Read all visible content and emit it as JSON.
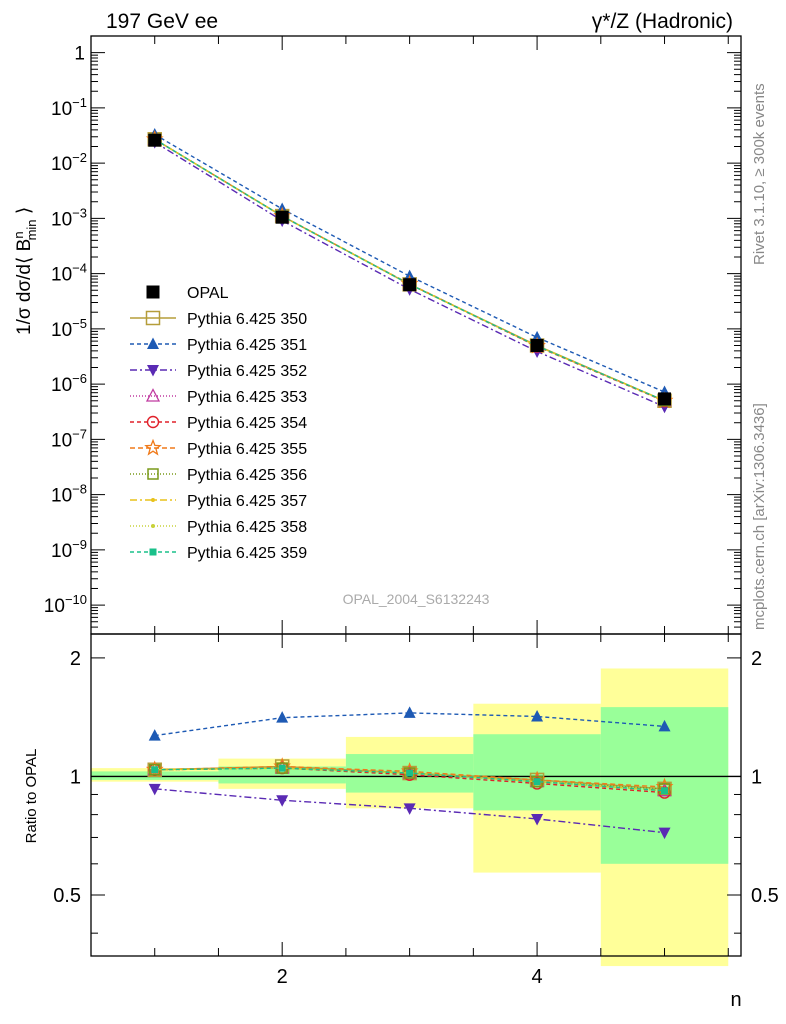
{
  "header": {
    "left_title": "197 GeV ee",
    "right_title": "γ*/Z (Hadronic)"
  },
  "side_labels": {
    "rivet": "Rivet 3.1.10, ≥ 300k events",
    "mcplots": "mcplots.cern.ch [arXiv:1306.3436]"
  },
  "watermark": "OPAL_2004_S6132243",
  "chart_data": [
    {
      "type": "line",
      "panel": "main",
      "title": "",
      "xlabel": "n",
      "ylabel": "1/σ dσ/d⟨ B^n_min ⟩",
      "yscale": "log",
      "ylim": [
        3e-11,
        2
      ],
      "xlim": [
        0.5,
        5.6
      ],
      "yticks": [
        {
          "v": 1,
          "base": "1",
          "exp": ""
        },
        {
          "v": 0.1,
          "base": "10",
          "exp": "−1"
        },
        {
          "v": 0.01,
          "base": "10",
          "exp": "−2"
        },
        {
          "v": 0.001,
          "base": "10",
          "exp": "−3"
        },
        {
          "v": 0.0001,
          "base": "10",
          "exp": "−4"
        },
        {
          "v": 1e-05,
          "base": "10",
          "exp": "−5"
        },
        {
          "v": 1e-06,
          "base": "10",
          "exp": "−6"
        },
        {
          "v": 1e-07,
          "base": "10",
          "exp": "−7"
        },
        {
          "v": 1e-08,
          "base": "10",
          "exp": "−8"
        },
        {
          "v": 1e-09,
          "base": "10",
          "exp": "−9"
        },
        {
          "v": 1e-10,
          "base": "10",
          "exp": "−10"
        }
      ],
      "x": [
        1,
        2,
        3,
        4,
        5
      ],
      "series": [
        {
          "name": "OPAL",
          "key": "data",
          "values": [
            0.026,
            0.00105,
            6.3e-05,
            5e-06,
            5.4e-07
          ],
          "color": "#000000",
          "marker": "filled-square",
          "dash": "none"
        },
        {
          "name": "Pythia 6.425 350",
          "key": "p350",
          "values": [
            0.027,
            0.0011,
            6.4e-05,
            5e-06,
            5e-07
          ],
          "color": "#b59d3a",
          "marker": "open-square",
          "dash": "solid"
        },
        {
          "name": "Pythia 6.425 351",
          "key": "p351",
          "values": [
            0.033,
            0.00148,
            9e-05,
            7e-06,
            7.2e-07
          ],
          "color": "#1e5ab4",
          "marker": "filled-triangle-up",
          "dash": "4,3"
        },
        {
          "name": "Pythia 6.425 352",
          "key": "p352",
          "values": [
            0.024,
            0.00091,
            5.2e-05,
            3.9e-06,
            3.9e-07
          ],
          "color": "#5a2ab4",
          "marker": "filled-triangle-down",
          "dash": "7,3,2,3"
        },
        {
          "name": "Pythia 6.425 353",
          "key": "p353",
          "values": [
            0.027,
            0.0011,
            6.4e-05,
            4.9e-06,
            5e-07
          ],
          "color": "#c03aa0",
          "marker": "open-triangle-up",
          "dash": "1,2"
        },
        {
          "name": "Pythia 6.425 354",
          "key": "p354",
          "values": [
            0.027,
            0.0011,
            6.4e-05,
            4.8e-06,
            4.9e-07
          ],
          "color": "#e0202a",
          "marker": "open-circle",
          "dash": "4,3"
        },
        {
          "name": "Pythia 6.425 355",
          "key": "p355",
          "values": [
            0.027,
            0.0011,
            6.5e-05,
            4.9e-06,
            5e-07
          ],
          "color": "#f07a1a",
          "marker": "open-star",
          "dash": "5,3"
        },
        {
          "name": "Pythia 6.425 356",
          "key": "p356",
          "values": [
            0.027,
            0.0011,
            6.4e-05,
            4.9e-06,
            5e-07
          ],
          "color": "#7a9a1a",
          "marker": "open-square-small",
          "dash": "1,2"
        },
        {
          "name": "Pythia 6.425 357",
          "key": "p357",
          "values": [
            0.027,
            0.0011,
            6.4e-05,
            4.9e-06,
            5e-07
          ],
          "color": "#e8c21a",
          "marker": "dot",
          "dash": "7,3,2,3"
        },
        {
          "name": "Pythia 6.425 358",
          "key": "p358",
          "values": [
            0.027,
            0.0011,
            6.4e-05,
            4.9e-06,
            5e-07
          ],
          "color": "#c8d23a",
          "marker": "dot",
          "dash": "1,2"
        },
        {
          "name": "Pythia 6.425 359",
          "key": "p359",
          "values": [
            0.027,
            0.0011,
            6.4e-05,
            4.9e-06,
            5e-07
          ],
          "color": "#1ac08a",
          "marker": "filled-square-small",
          "dash": "4,3"
        }
      ],
      "legend": "left, middle"
    },
    {
      "type": "line",
      "panel": "ratio",
      "xlabel": "n",
      "ylabel": "Ratio to OPAL",
      "ylim": [
        0.35,
        2.3
      ],
      "xlim": [
        0.5,
        5.6
      ],
      "xticks": [
        2,
        4
      ],
      "yticks": [
        0.5,
        1,
        2
      ],
      "x": [
        1,
        2,
        3,
        4,
        5
      ],
      "bands": {
        "xedges": [
          0.5,
          1.5,
          2.5,
          3.5,
          4.5,
          5.5
        ],
        "yellow": [
          [
            0.97,
            1.05
          ],
          [
            0.93,
            1.11
          ],
          [
            0.83,
            1.26
          ],
          [
            0.57,
            1.53
          ],
          [
            0.33,
            1.88
          ]
        ],
        "green": [
          [
            0.98,
            1.03
          ],
          [
            0.96,
            1.06
          ],
          [
            0.91,
            1.14
          ],
          [
            0.82,
            1.28
          ],
          [
            0.6,
            1.5
          ]
        ]
      },
      "series": [
        {
          "name": "Pythia 6.425 350",
          "key": "p350",
          "values": [
            1.04,
            1.06,
            1.02,
            0.98,
            0.93
          ]
        },
        {
          "name": "Pythia 6.425 351",
          "key": "p351",
          "values": [
            1.27,
            1.41,
            1.45,
            1.42,
            1.34
          ]
        },
        {
          "name": "Pythia 6.425 352",
          "key": "p352",
          "values": [
            0.93,
            0.87,
            0.83,
            0.78,
            0.72
          ]
        },
        {
          "name": "Pythia 6.425 353",
          "key": "p353",
          "values": [
            1.04,
            1.05,
            1.02,
            0.97,
            0.92
          ]
        },
        {
          "name": "Pythia 6.425 354",
          "key": "p354",
          "values": [
            1.04,
            1.05,
            1.01,
            0.96,
            0.91
          ]
        },
        {
          "name": "Pythia 6.425 355",
          "key": "p355",
          "values": [
            1.04,
            1.06,
            1.03,
            0.98,
            0.94
          ]
        },
        {
          "name": "Pythia 6.425 356",
          "key": "p356",
          "values": [
            1.04,
            1.05,
            1.02,
            0.97,
            0.93
          ]
        },
        {
          "name": "Pythia 6.425 357",
          "key": "p357",
          "values": [
            1.04,
            1.05,
            1.02,
            0.97,
            0.92
          ]
        },
        {
          "name": "Pythia 6.425 358",
          "key": "p358",
          "values": [
            1.04,
            1.05,
            1.02,
            0.97,
            0.92
          ]
        },
        {
          "name": "Pythia 6.425 359",
          "key": "p359",
          "values": [
            1.04,
            1.05,
            1.02,
            0.97,
            0.92
          ]
        }
      ]
    }
  ]
}
